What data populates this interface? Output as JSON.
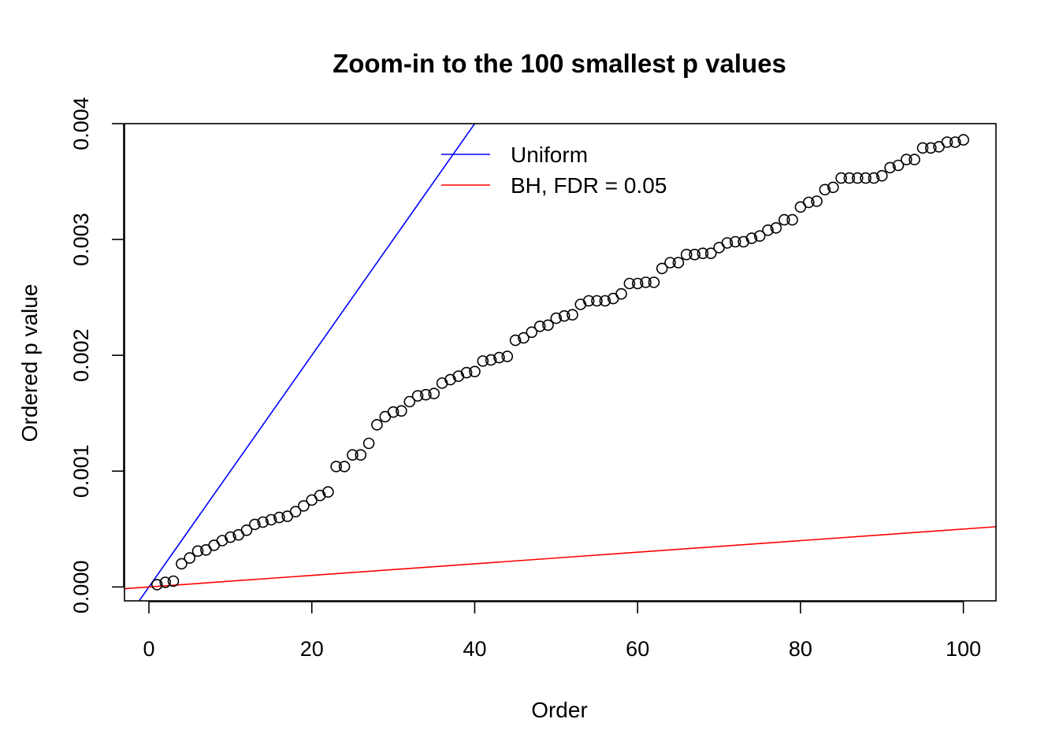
{
  "chart_data": {
    "type": "scatter",
    "title": "Zoom-in to the 100 smallest p values",
    "xlabel": "Order",
    "ylabel": "Ordered p value",
    "xlim": [
      -3,
      104
    ],
    "ylim": [
      -0.00012,
      0.004
    ],
    "x_ticks": [
      0,
      20,
      40,
      60,
      80,
      100
    ],
    "x_tick_labels": [
      "0",
      "20",
      "40",
      "60",
      "80",
      "100"
    ],
    "y_ticks": [
      0,
      0.001,
      0.002,
      0.003,
      0.004
    ],
    "y_tick_labels": [
      "0.000",
      "0.001",
      "0.002",
      "0.003",
      "0.004"
    ],
    "grid": false,
    "legend_position": "top-center",
    "series": [
      {
        "kind": "points",
        "color": "#000000",
        "x": [
          1,
          2,
          3,
          4,
          5,
          6,
          7,
          8,
          9,
          10,
          11,
          12,
          13,
          14,
          15,
          16,
          17,
          18,
          19,
          20,
          21,
          22,
          23,
          24,
          25,
          26,
          27,
          28,
          29,
          30,
          31,
          32,
          33,
          34,
          35,
          36,
          37,
          38,
          39,
          40,
          41,
          42,
          43,
          44,
          45,
          46,
          47,
          48,
          49,
          50,
          51,
          52,
          53,
          54,
          55,
          56,
          57,
          58,
          59,
          60,
          61,
          62,
          63,
          64,
          65,
          66,
          67,
          68,
          69,
          70,
          71,
          72,
          73,
          74,
          75,
          76,
          77,
          78,
          79,
          80,
          81,
          82,
          83,
          84,
          85,
          86,
          87,
          88,
          89,
          90,
          91,
          92,
          93,
          94,
          95,
          96,
          97,
          98,
          99,
          100
        ],
        "values": [
          2e-05,
          4e-05,
          5e-05,
          0.0002,
          0.00025,
          0.00031,
          0.00032,
          0.00036,
          0.0004,
          0.00043,
          0.00045,
          0.00049,
          0.00054,
          0.00056,
          0.00058,
          0.0006,
          0.00061,
          0.00065,
          0.0007,
          0.00075,
          0.00079,
          0.00082,
          0.00104,
          0.00104,
          0.00114,
          0.00114,
          0.00124,
          0.0014,
          0.00147,
          0.00151,
          0.00152,
          0.0016,
          0.00165,
          0.00166,
          0.00167,
          0.00176,
          0.00179,
          0.00182,
          0.00185,
          0.00186,
          0.00195,
          0.00196,
          0.00198,
          0.00199,
          0.00213,
          0.00215,
          0.0022,
          0.00225,
          0.00226,
          0.00232,
          0.00234,
          0.00235,
          0.00244,
          0.00247,
          0.00247,
          0.00247,
          0.00249,
          0.00253,
          0.00262,
          0.00262,
          0.00263,
          0.00263,
          0.00275,
          0.0028,
          0.0028,
          0.00287,
          0.00287,
          0.00288,
          0.00288,
          0.00293,
          0.00297,
          0.00298,
          0.00298,
          0.00301,
          0.00303,
          0.00308,
          0.0031,
          0.00317,
          0.00317,
          0.00328,
          0.00332,
          0.00333,
          0.00343,
          0.00345,
          0.00353,
          0.00353,
          0.00353,
          0.00353,
          0.00353,
          0.00355,
          0.00362,
          0.00364,
          0.00369,
          0.00369,
          0.00379,
          0.00379,
          0.0038,
          0.00384,
          0.00384,
          0.00386
        ]
      },
      {
        "kind": "line",
        "name": "Uniform",
        "color": "#0000ff",
        "intercept": 0,
        "slope": 0.0001
      },
      {
        "kind": "line",
        "name": "BH, FDR = 0.05",
        "color": "#ff0000",
        "intercept": 0,
        "slope": 5e-06
      }
    ]
  }
}
